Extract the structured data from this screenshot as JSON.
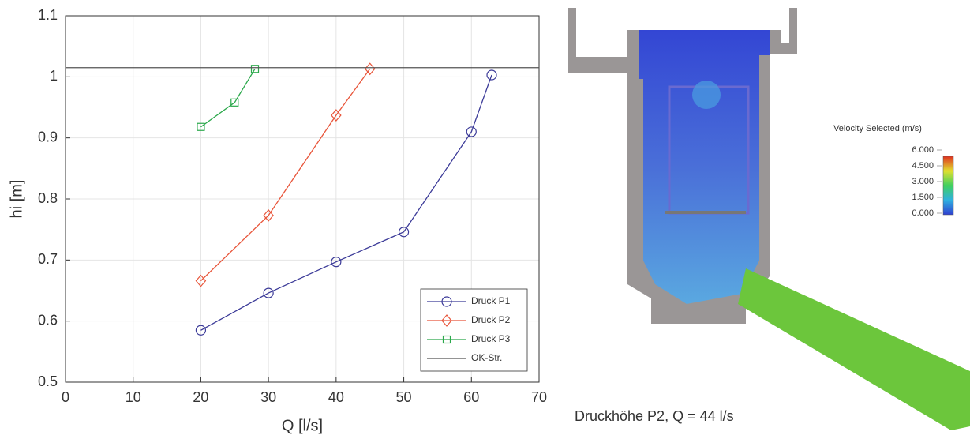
{
  "chart_data": {
    "type": "line",
    "xlabel": "Q  [l/s]",
    "ylabel": "hi [m]",
    "xlim": [
      0,
      70
    ],
    "xticks": [
      0,
      10,
      20,
      30,
      40,
      50,
      60,
      70
    ],
    "ylim": [
      0.5,
      1.1
    ],
    "yticks": [
      0.5,
      0.6,
      0.7,
      0.8,
      0.9,
      1,
      1.1
    ],
    "grid": true,
    "legend": "lower right",
    "series": [
      {
        "name": "Druck P1",
        "color": "#3b3a98",
        "marker": "circle",
        "x": [
          20,
          30,
          40,
          50,
          60,
          63
        ],
        "values": [
          0.585,
          0.646,
          0.697,
          0.746,
          0.91,
          1.003
        ]
      },
      {
        "name": "Druck P2",
        "color": "#e8553a",
        "marker": "diamond",
        "x": [
          20,
          30,
          40,
          45
        ],
        "values": [
          0.666,
          0.773,
          0.937,
          1.013
        ]
      },
      {
        "name": "Druck P3",
        "color": "#2aa84a",
        "marker": "square",
        "x": [
          20,
          25,
          28
        ],
        "values": [
          0.918,
          0.958,
          1.013
        ]
      },
      {
        "name": "OK-Str.",
        "color": "#555555",
        "marker": "none",
        "x": [
          0,
          70
        ],
        "values": [
          1.015,
          1.015
        ]
      }
    ]
  },
  "figure": {
    "colorbar": {
      "title": "Velocity Selected (m/s)",
      "ticks": [
        {
          "value": 6,
          "label": "6.000"
        },
        {
          "value": 4.5,
          "label": "4.500"
        },
        {
          "value": 3,
          "label": "3.000"
        },
        {
          "value": 1.5,
          "label": "1.500"
        },
        {
          "value": 0,
          "label": "0.000"
        }
      ]
    },
    "caption": "Druckhöhe P2, Q = 44 l/s"
  }
}
